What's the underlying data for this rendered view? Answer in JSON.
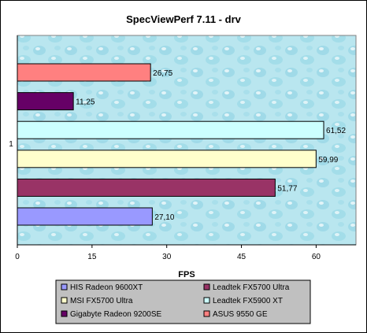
{
  "chart_data": {
    "type": "bar",
    "orientation": "horizontal",
    "title": "SpecViewPerf 7.11 - drv",
    "xlabel": "FPS",
    "ylabel": "",
    "categories": [
      "1"
    ],
    "xlim": [
      0,
      68
    ],
    "x_ticks": [
      "0",
      "15",
      "30",
      "45",
      "60"
    ],
    "x_tick_values": [
      0,
      15,
      30,
      45,
      60
    ],
    "grid": false,
    "legend_position": "bottom",
    "plot_background": "#b9e6ef",
    "series": [
      {
        "name": "HIS Radeon 9600XT",
        "value": 27.1,
        "label": "27,10",
        "color": "#9999ff"
      },
      {
        "name": "Leadtek FX5700 Ultra",
        "value": 51.77,
        "label": "51,77",
        "color": "#993366"
      },
      {
        "name": "MSI FX5700 Ultra",
        "value": 59.99,
        "label": "59,99",
        "color": "#ffffcc"
      },
      {
        "name": "Leadtek FX5900 XT",
        "value": 61.52,
        "label": "61,52",
        "color": "#ccffff"
      },
      {
        "name": "Gigabyte Radeon 9200SE",
        "value": 11.25,
        "label": "11,25",
        "color": "#660066"
      },
      {
        "name": "ASUS 9550 GE",
        "value": 26.75,
        "label": "26,75",
        "color": "#ff8080"
      }
    ],
    "legend": [
      [
        "HIS Radeon 9600XT",
        "Leadtek FX5700 Ultra"
      ],
      [
        "MSI FX5700 Ultra",
        "Leadtek FX5900 XT"
      ],
      [
        "Gigabyte Radeon 9200SE",
        "ASUS 9550 GE"
      ]
    ]
  }
}
